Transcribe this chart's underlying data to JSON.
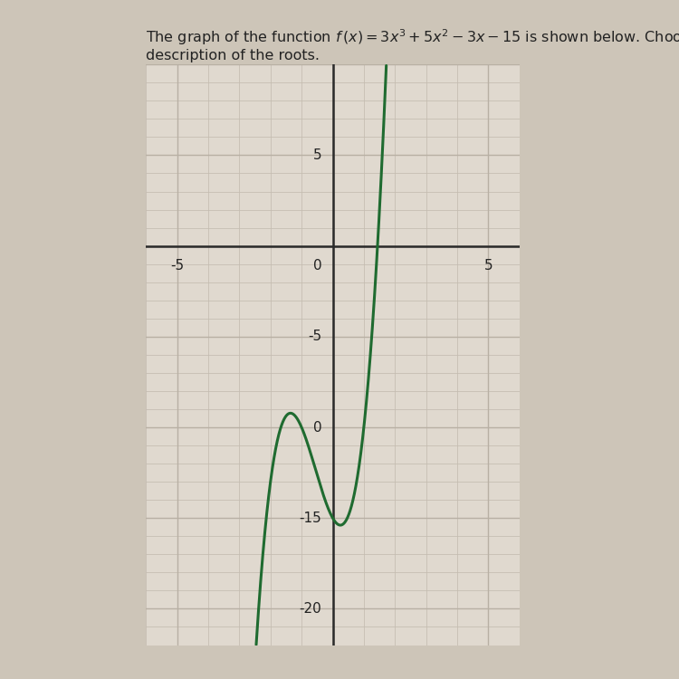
{
  "xlim": [
    -6,
    6
  ],
  "ylim": [
    -22,
    10
  ],
  "curve_color": "#1f6b30",
  "curve_linewidth": 2.2,
  "bg_color": "#cdc5b8",
  "plot_bg_color": "#e0d9cf",
  "grid_minor_color": "#c4bcb0",
  "grid_major_color": "#b8b0a4",
  "axis_color": "#2a2a2a",
  "text_color": "#222222",
  "label_fontsize": 11,
  "title_fontsize": 11.5
}
